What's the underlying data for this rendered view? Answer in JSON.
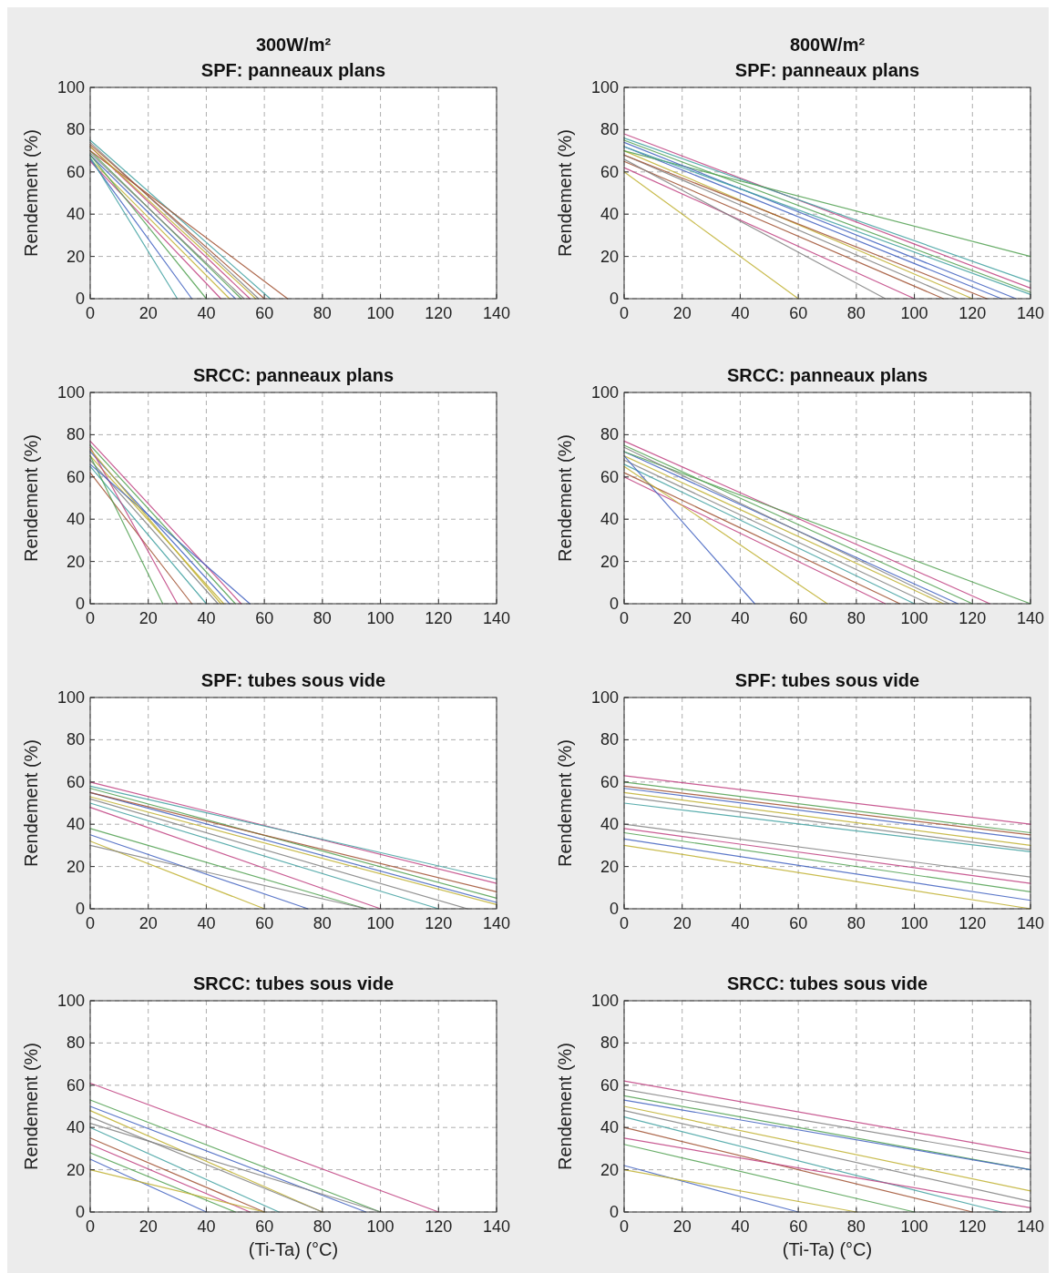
{
  "chart_data": [
    {
      "type": "line",
      "title": "300W/m²",
      "subtitle": "SPF: panneaux plans",
      "ylabel": "Rendement (%)",
      "xlim": [
        0,
        140
      ],
      "ylim": [
        0,
        100
      ],
      "xticks": [
        0,
        20,
        40,
        60,
        80,
        100,
        120,
        140
      ],
      "yticks": [
        0,
        20,
        40,
        60,
        80,
        100
      ],
      "grid": true,
      "series": [
        {
          "color": "#c04080",
          "x": [
            0,
            55
          ],
          "values": [
            72,
            0
          ]
        },
        {
          "color": "#50a050",
          "x": [
            0,
            52
          ],
          "values": [
            70,
            0
          ]
        },
        {
          "color": "#4060c0",
          "x": [
            0,
            50
          ],
          "values": [
            68,
            0
          ]
        },
        {
          "color": "#c0b030",
          "x": [
            0,
            48
          ],
          "values": [
            66,
            0
          ]
        },
        {
          "color": "#808080",
          "x": [
            0,
            58
          ],
          "values": [
            74,
            0
          ]
        },
        {
          "color": "#40a0a0",
          "x": [
            0,
            62
          ],
          "values": [
            75,
            0
          ]
        },
        {
          "color": "#a05030",
          "x": [
            0,
            68
          ],
          "values": [
            70,
            0
          ]
        },
        {
          "color": "#c04080",
          "x": [
            0,
            45
          ],
          "values": [
            65,
            0
          ]
        },
        {
          "color": "#50a050",
          "x": [
            0,
            40
          ],
          "values": [
            68,
            0
          ]
        },
        {
          "color": "#4060c0",
          "x": [
            0,
            35
          ],
          "values": [
            66,
            0
          ]
        },
        {
          "color": "#c0b030",
          "x": [
            0,
            57
          ],
          "values": [
            72,
            0
          ]
        },
        {
          "color": "#808080",
          "x": [
            0,
            53
          ],
          "values": [
            69,
            0
          ]
        },
        {
          "color": "#40a0a0",
          "x": [
            0,
            30
          ],
          "values": [
            67,
            0
          ]
        },
        {
          "color": "#a05030",
          "x": [
            0,
            60
          ],
          "values": [
            73,
            0
          ]
        }
      ]
    },
    {
      "type": "line",
      "title": "800W/m²",
      "subtitle": "SPF: panneaux plans",
      "ylabel": "Rendement (%)",
      "xlim": [
        0,
        140
      ],
      "ylim": [
        0,
        100
      ],
      "xticks": [
        0,
        20,
        40,
        60,
        80,
        100,
        120,
        140
      ],
      "yticks": [
        0,
        20,
        40,
        60,
        80,
        100
      ],
      "grid": true,
      "series": [
        {
          "color": "#c04080",
          "x": [
            0,
            140
          ],
          "values": [
            78,
            5
          ]
        },
        {
          "color": "#50a050",
          "x": [
            0,
            140
          ],
          "values": [
            75,
            3
          ]
        },
        {
          "color": "#4060c0",
          "x": [
            0,
            130
          ],
          "values": [
            72,
            0
          ]
        },
        {
          "color": "#c0b030",
          "x": [
            0,
            120
          ],
          "values": [
            70,
            0
          ]
        },
        {
          "color": "#808080",
          "x": [
            0,
            115
          ],
          "values": [
            68,
            0
          ]
        },
        {
          "color": "#40a0a0",
          "x": [
            0,
            140
          ],
          "values": [
            76,
            8
          ]
        },
        {
          "color": "#a05030",
          "x": [
            0,
            110
          ],
          "values": [
            65,
            0
          ]
        },
        {
          "color": "#c04080",
          "x": [
            0,
            100
          ],
          "values": [
            62,
            0
          ]
        },
        {
          "color": "#50a050",
          "x": [
            0,
            140
          ],
          "values": [
            70,
            20
          ]
        },
        {
          "color": "#4060c0",
          "x": [
            0,
            135
          ],
          "values": [
            74,
            0
          ]
        },
        {
          "color": "#c0b030",
          "x": [
            0,
            60
          ],
          "values": [
            60,
            0
          ]
        },
        {
          "color": "#808080",
          "x": [
            0,
            90
          ],
          "values": [
            66,
            0
          ]
        },
        {
          "color": "#40a0a0",
          "x": [
            0,
            140
          ],
          "values": [
            72,
            2
          ]
        },
        {
          "color": "#a05030",
          "x": [
            0,
            125
          ],
          "values": [
            68,
            0
          ]
        }
      ]
    },
    {
      "type": "line",
      "subtitle": "SRCC: panneaux plans",
      "ylabel": "Rendement (%)",
      "xlim": [
        0,
        140
      ],
      "ylim": [
        0,
        100
      ],
      "xticks": [
        0,
        20,
        40,
        60,
        80,
        100,
        120,
        140
      ],
      "yticks": [
        0,
        20,
        40,
        60,
        80,
        100
      ],
      "grid": true,
      "series": [
        {
          "color": "#c04080",
          "x": [
            0,
            52
          ],
          "values": [
            77,
            0
          ]
        },
        {
          "color": "#50a050",
          "x": [
            0,
            50
          ],
          "values": [
            75,
            0
          ]
        },
        {
          "color": "#4060c0",
          "x": [
            0,
            48
          ],
          "values": [
            72,
            0
          ]
        },
        {
          "color": "#c0b030",
          "x": [
            0,
            46
          ],
          "values": [
            70,
            0
          ]
        },
        {
          "color": "#808080",
          "x": [
            0,
            44
          ],
          "values": [
            68,
            0
          ]
        },
        {
          "color": "#40a0a0",
          "x": [
            0,
            40
          ],
          "values": [
            65,
            0
          ]
        },
        {
          "color": "#a05030",
          "x": [
            0,
            35
          ],
          "values": [
            62,
            0
          ]
        },
        {
          "color": "#c04080",
          "x": [
            0,
            30
          ],
          "values": [
            74,
            0
          ]
        },
        {
          "color": "#50a050",
          "x": [
            0,
            25
          ],
          "values": [
            70,
            0
          ]
        },
        {
          "color": "#4060c0",
          "x": [
            0,
            55
          ],
          "values": [
            66,
            0
          ]
        },
        {
          "color": "#c0b030",
          "x": [
            0,
            45
          ],
          "values": [
            73,
            0
          ]
        }
      ]
    },
    {
      "type": "line",
      "subtitle": "SRCC: panneaux plans",
      "ylabel": "Rendement (%)",
      "xlim": [
        0,
        140
      ],
      "ylim": [
        0,
        100
      ],
      "xticks": [
        0,
        20,
        40,
        60,
        80,
        100,
        120,
        140
      ],
      "yticks": [
        0,
        20,
        40,
        60,
        80,
        100
      ],
      "grid": true,
      "series": [
        {
          "color": "#c04080",
          "x": [
            0,
            126
          ],
          "values": [
            77,
            0
          ]
        },
        {
          "color": "#50a050",
          "x": [
            0,
            120
          ],
          "values": [
            75,
            0
          ]
        },
        {
          "color": "#4060c0",
          "x": [
            0,
            115
          ],
          "values": [
            72,
            0
          ]
        },
        {
          "color": "#c0b030",
          "x": [
            0,
            110
          ],
          "values": [
            70,
            0
          ]
        },
        {
          "color": "#808080",
          "x": [
            0,
            105
          ],
          "values": [
            68,
            0
          ]
        },
        {
          "color": "#40a0a0",
          "x": [
            0,
            100
          ],
          "values": [
            66,
            0
          ]
        },
        {
          "color": "#a05030",
          "x": [
            0,
            95
          ],
          "values": [
            62,
            0
          ]
        },
        {
          "color": "#c04080",
          "x": [
            0,
            90
          ],
          "values": [
            60,
            0
          ]
        },
        {
          "color": "#50a050",
          "x": [
            0,
            140
          ],
          "values": [
            72,
            0
          ]
        },
        {
          "color": "#4060c0",
          "x": [
            0,
            45
          ],
          "values": [
            70,
            0
          ]
        },
        {
          "color": "#c0b030",
          "x": [
            0,
            70
          ],
          "values": [
            65,
            0
          ]
        },
        {
          "color": "#808080",
          "x": [
            0,
            112
          ],
          "values": [
            74,
            0
          ]
        }
      ]
    },
    {
      "type": "line",
      "subtitle": "SPF: tubes sous vide",
      "ylabel": "Rendement (%)",
      "xlim": [
        0,
        140
      ],
      "ylim": [
        0,
        100
      ],
      "xticks": [
        0,
        20,
        40,
        60,
        80,
        100,
        120,
        140
      ],
      "yticks": [
        0,
        20,
        40,
        60,
        80,
        100
      ],
      "grid": true,
      "series": [
        {
          "color": "#c04080",
          "x": [
            0,
            140
          ],
          "values": [
            60,
            12
          ]
        },
        {
          "color": "#50a050",
          "x": [
            0,
            140
          ],
          "values": [
            57,
            5
          ]
        },
        {
          "color": "#4060c0",
          "x": [
            0,
            140
          ],
          "values": [
            55,
            3
          ]
        },
        {
          "color": "#c0b030",
          "x": [
            0,
            140
          ],
          "values": [
            53,
            2
          ]
        },
        {
          "color": "#808080",
          "x": [
            0,
            130
          ],
          "values": [
            52,
            0
          ]
        },
        {
          "color": "#40a0a0",
          "x": [
            0,
            120
          ],
          "values": [
            50,
            0
          ]
        },
        {
          "color": "#a05030",
          "x": [
            0,
            140
          ],
          "values": [
            55,
            8
          ]
        },
        {
          "color": "#c04080",
          "x": [
            0,
            100
          ],
          "values": [
            48,
            0
          ]
        },
        {
          "color": "#50a050",
          "x": [
            0,
            95
          ],
          "values": [
            38,
            0
          ]
        },
        {
          "color": "#4060c0",
          "x": [
            0,
            75
          ],
          "values": [
            35,
            0
          ]
        },
        {
          "color": "#c0b030",
          "x": [
            0,
            60
          ],
          "values": [
            32,
            0
          ]
        },
        {
          "color": "#808080",
          "x": [
            0,
            95
          ],
          "values": [
            30,
            0
          ]
        },
        {
          "color": "#40a0a0",
          "x": [
            0,
            140
          ],
          "values": [
            58,
            14
          ]
        }
      ]
    },
    {
      "type": "line",
      "subtitle": "SPF: tubes sous vide",
      "ylabel": "Rendement (%)",
      "xlim": [
        0,
        140
      ],
      "ylim": [
        0,
        100
      ],
      "xticks": [
        0,
        20,
        40,
        60,
        80,
        100,
        120,
        140
      ],
      "yticks": [
        0,
        20,
        40,
        60,
        80,
        100
      ],
      "grid": true,
      "series": [
        {
          "color": "#c04080",
          "x": [
            0,
            140
          ],
          "values": [
            63,
            40
          ]
        },
        {
          "color": "#50a050",
          "x": [
            0,
            140
          ],
          "values": [
            60,
            36
          ]
        },
        {
          "color": "#4060c0",
          "x": [
            0,
            140
          ],
          "values": [
            57,
            33
          ]
        },
        {
          "color": "#c0b030",
          "x": [
            0,
            140
          ],
          "values": [
            55,
            30
          ]
        },
        {
          "color": "#808080",
          "x": [
            0,
            140
          ],
          "values": [
            53,
            28
          ]
        },
        {
          "color": "#40a0a0",
          "x": [
            0,
            140
          ],
          "values": [
            50,
            27
          ]
        },
        {
          "color": "#a05030",
          "x": [
            0,
            140
          ],
          "values": [
            58,
            35
          ]
        },
        {
          "color": "#c04080",
          "x": [
            0,
            140
          ],
          "values": [
            38,
            12
          ]
        },
        {
          "color": "#50a050",
          "x": [
            0,
            140
          ],
          "values": [
            36,
            8
          ]
        },
        {
          "color": "#4060c0",
          "x": [
            0,
            140
          ],
          "values": [
            33,
            4
          ]
        },
        {
          "color": "#c0b030",
          "x": [
            0,
            140
          ],
          "values": [
            30,
            0
          ]
        },
        {
          "color": "#808080",
          "x": [
            0,
            140
          ],
          "values": [
            40,
            15
          ]
        }
      ]
    },
    {
      "type": "line",
      "subtitle": "SRCC: tubes sous vide",
      "ylabel": "Rendement (%)",
      "xlabel": "(Ti-Ta) (°C)",
      "xlim": [
        0,
        140
      ],
      "ylim": [
        0,
        100
      ],
      "xticks": [
        0,
        20,
        40,
        60,
        80,
        100,
        120,
        140
      ],
      "yticks": [
        0,
        20,
        40,
        60,
        80,
        100
      ],
      "grid": true,
      "series": [
        {
          "color": "#c04080",
          "x": [
            0,
            120
          ],
          "values": [
            61,
            0
          ]
        },
        {
          "color": "#50a050",
          "x": [
            0,
            100
          ],
          "values": [
            53,
            0
          ]
        },
        {
          "color": "#4060c0",
          "x": [
            0,
            95
          ],
          "values": [
            50,
            0
          ]
        },
        {
          "color": "#c0b030",
          "x": [
            0,
            80
          ],
          "values": [
            48,
            0
          ]
        },
        {
          "color": "#808080",
          "x": [
            0,
            80
          ],
          "values": [
            45,
            0
          ]
        },
        {
          "color": "#40a0a0",
          "x": [
            0,
            65
          ],
          "values": [
            40,
            0
          ]
        },
        {
          "color": "#a05030",
          "x": [
            0,
            60
          ],
          "values": [
            35,
            0
          ]
        },
        {
          "color": "#c04080",
          "x": [
            0,
            55
          ],
          "values": [
            32,
            0
          ]
        },
        {
          "color": "#50a050",
          "x": [
            0,
            50
          ],
          "values": [
            28,
            0
          ]
        },
        {
          "color": "#4060c0",
          "x": [
            0,
            40
          ],
          "values": [
            25,
            0
          ]
        },
        {
          "color": "#c0b030",
          "x": [
            0,
            60
          ],
          "values": [
            20,
            0
          ]
        },
        {
          "color": "#808080",
          "x": [
            0,
            100
          ],
          "values": [
            42,
            0
          ]
        }
      ]
    },
    {
      "type": "line",
      "subtitle": "SRCC: tubes sous vide",
      "ylabel": "Rendement (%)",
      "xlabel": "(Ti-Ta) (°C)",
      "xlim": [
        0,
        140
      ],
      "ylim": [
        0,
        100
      ],
      "xticks": [
        0,
        20,
        40,
        60,
        80,
        100,
        120,
        140
      ],
      "yticks": [
        0,
        20,
        40,
        60,
        80,
        100
      ],
      "grid": true,
      "series": [
        {
          "color": "#c04080",
          "x": [
            0,
            140
          ],
          "values": [
            62,
            28
          ]
        },
        {
          "color": "#50a050",
          "x": [
            0,
            140
          ],
          "values": [
            55,
            20
          ]
        },
        {
          "color": "#4060c0",
          "x": [
            0,
            140
          ],
          "values": [
            53,
            20
          ]
        },
        {
          "color": "#c0b030",
          "x": [
            0,
            140
          ],
          "values": [
            50,
            10
          ]
        },
        {
          "color": "#808080",
          "x": [
            0,
            140
          ],
          "values": [
            48,
            5
          ]
        },
        {
          "color": "#40a0a0",
          "x": [
            0,
            130
          ],
          "values": [
            45,
            0
          ]
        },
        {
          "color": "#a05030",
          "x": [
            0,
            120
          ],
          "values": [
            40,
            0
          ]
        },
        {
          "color": "#c04080",
          "x": [
            0,
            140
          ],
          "values": [
            35,
            2
          ]
        },
        {
          "color": "#50a050",
          "x": [
            0,
            100
          ],
          "values": [
            32,
            0
          ]
        },
        {
          "color": "#4060c0",
          "x": [
            0,
            60
          ],
          "values": [
            22,
            0
          ]
        },
        {
          "color": "#c0b030",
          "x": [
            0,
            80
          ],
          "values": [
            20,
            0
          ]
        },
        {
          "color": "#808080",
          "x": [
            0,
            140
          ],
          "values": [
            58,
            25
          ]
        }
      ]
    }
  ]
}
